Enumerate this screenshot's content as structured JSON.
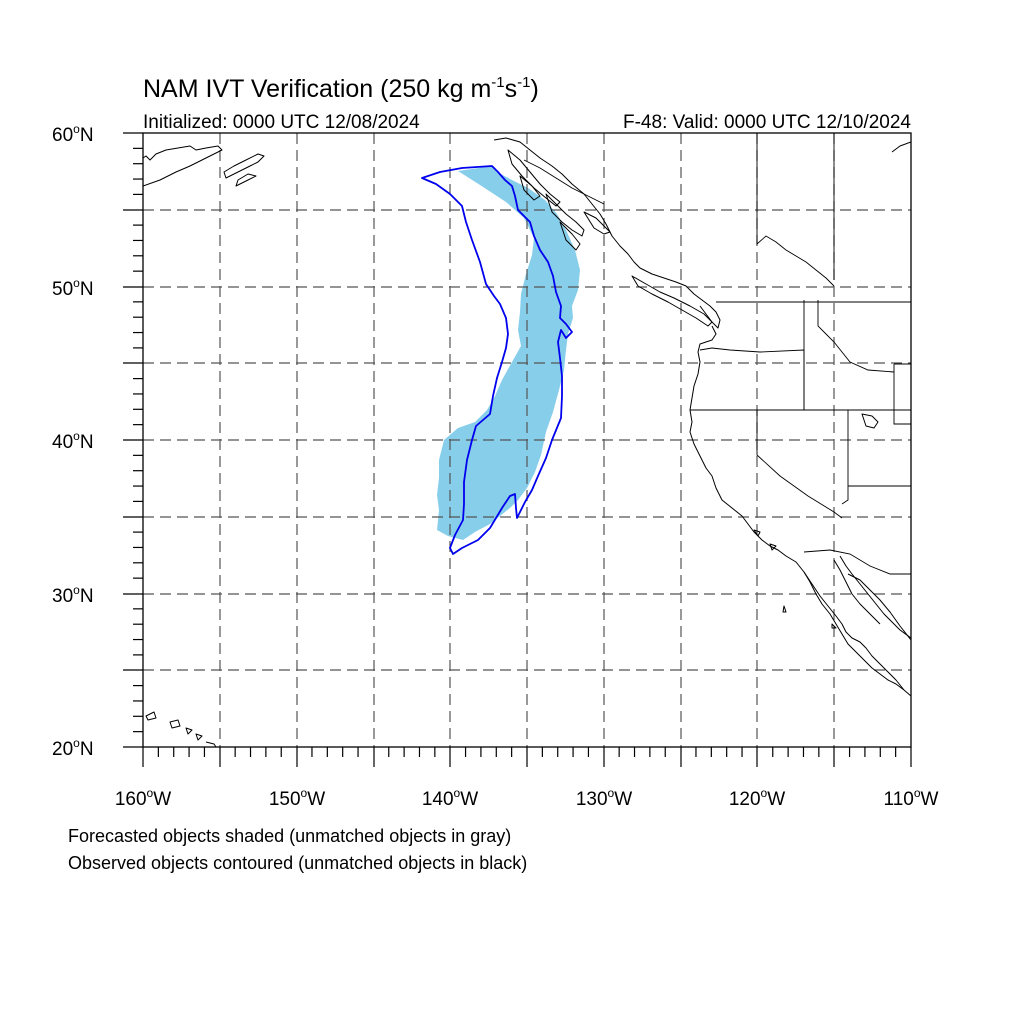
{
  "title": "NAM IVT Verification (250 kg m",
  "title_sup1": "-1",
  "title_mid": "s",
  "title_sup2": "-1",
  "title_end": ")",
  "initialized": "Initialized: 0000 UTC 12/08/2024",
  "valid": "F-48: Valid: 0000 UTC 12/10/2024",
  "lat_labels": [
    "60",
    "50",
    "40",
    "30",
    "20"
  ],
  "lon_labels": [
    "160",
    "150",
    "140",
    "130",
    "120",
    "110"
  ],
  "lat_suffix": "N",
  "lon_suffix": "W",
  "degree": "o",
  "caption_line1": "Forecasted objects shaded (unmatched objects in gray)",
  "caption_line2": "Observed objects contoured (unmatched objects in black)",
  "colors": {
    "forecast_fill": "#87ceeb",
    "observed_contour": "#0000ee",
    "coastline": "#000000",
    "grid": "#555555"
  }
}
